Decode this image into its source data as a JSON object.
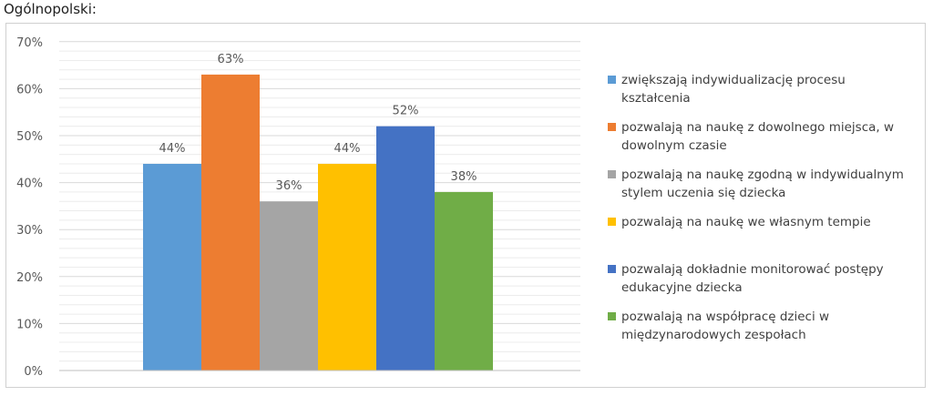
{
  "heading": "Ogólnopolski:",
  "chart_data": {
    "type": "bar",
    "title": "",
    "xlabel": "",
    "ylabel": "",
    "ylim": [
      0,
      70
    ],
    "yticks": [
      "0%",
      "10%",
      "20%",
      "30%",
      "40%",
      "50%",
      "60%",
      "70%"
    ],
    "grid": true,
    "legend_position": "right",
    "series": [
      {
        "name": "zwiększają indywidualizację procesu kształcenia",
        "value": 44,
        "label": "44%",
        "color": "#5b9bd5"
      },
      {
        "name": "pozwalają na naukę z dowolnego miejsca, w dowolnym czasie",
        "value": 63,
        "label": "63%",
        "color": "#ed7d31"
      },
      {
        "name": "pozwalają na naukę zgodną w indywidualnym stylem uczenia się dziecka",
        "value": 36,
        "label": "36%",
        "color": "#a5a5a5"
      },
      {
        "name": "pozwalają na naukę we własnym tempie",
        "value": 44,
        "label": "44%",
        "color": "#ffc000"
      },
      {
        "name": "pozwalają dokładnie monitorować postępy edukacyjne dziecka",
        "value": 52,
        "label": "52%",
        "color": "#4472c4"
      },
      {
        "name": "pozwalają na współpracę dzieci w międzynarodowych zespołach",
        "value": 38,
        "label": "38%",
        "color": "#70ad47"
      }
    ]
  },
  "legend_lines": [
    [
      "zwiększają indywidualizację procesu",
      "kształcenia"
    ],
    [
      "pozwalają na naukę z dowolnego miejsca, w",
      "dowolnym czasie"
    ],
    [
      "pozwalają na naukę zgodną w indywidualnym",
      "stylem uczenia się dziecka"
    ],
    [
      "pozwalają na naukę we własnym tempie"
    ],
    [
      "pozwalają dokładnie monitorować postępy",
      "edukacyjne dziecka"
    ],
    [
      "pozwalają na współpracę dzieci w",
      "międzynarodowych zespołach"
    ]
  ]
}
